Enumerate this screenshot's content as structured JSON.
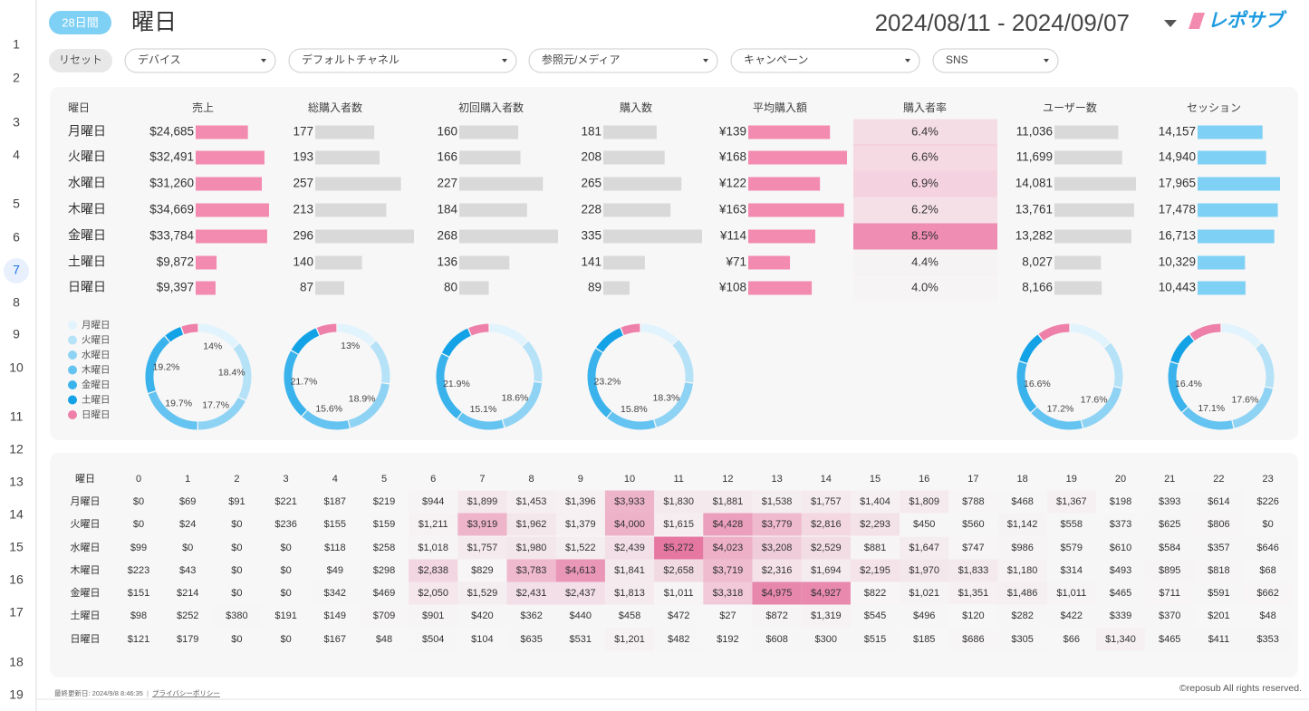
{
  "row_numbers": [
    1,
    2,
    3,
    4,
    5,
    6,
    7,
    8,
    9,
    10,
    11,
    12,
    13,
    14,
    15,
    16,
    17,
    18,
    19
  ],
  "header": {
    "period": "28日間",
    "title": "曜日",
    "date_range": "2024/08/11 - 2024/09/07",
    "logo": "レポサブ"
  },
  "filters": {
    "reset": "リセット",
    "dropdowns": [
      "デバイス",
      "デフォルトチャネル",
      "参照元/メディア",
      "キャンペーン",
      "SNS"
    ]
  },
  "days": [
    "月曜日",
    "火曜日",
    "水曜日",
    "木曜日",
    "金曜日",
    "土曜日",
    "日曜日"
  ],
  "day_colors": [
    "#e1f3fd",
    "#b6e2f8",
    "#8fd3f4",
    "#64c3f0",
    "#3ab3ec",
    "#13a2e6",
    "#ee7fa8"
  ],
  "table": {
    "header": "曜日",
    "columns": [
      {
        "name": "売上",
        "style": "bar",
        "color": "#f38bb0",
        "values": [
          24685,
          32491,
          31260,
          34669,
          33784,
          9872,
          9397
        ],
        "value_labels": [
          "$24,685",
          "$32,491",
          "$31,260",
          "$34,669",
          "$33,784",
          "$9,872",
          "$9,397"
        ],
        "donut_labels": [
          "14%",
          "18.4%",
          "17.7%",
          "19.7%",
          "19.2%",
          null,
          null
        ]
      },
      {
        "name": "総購入者数",
        "style": "bar",
        "color": "#d9d9d9",
        "values": [
          177,
          193,
          257,
          213,
          296,
          140,
          87
        ],
        "donut_labels": [
          "13%",
          null,
          "18.9%",
          "15.6%",
          "21.7%",
          null,
          null
        ]
      },
      {
        "name": "初回購入者数",
        "style": "bar",
        "color": "#d9d9d9",
        "values": [
          160,
          166,
          227,
          184,
          268,
          136,
          80
        ],
        "donut_labels": [
          null,
          null,
          "18.6%",
          "15.1%",
          "21.9%",
          null,
          null
        ]
      },
      {
        "name": "購入数",
        "style": "bar",
        "color": "#d9d9d9",
        "values": [
          181,
          208,
          265,
          228,
          335,
          141,
          89
        ],
        "donut_labels": [
          null,
          null,
          "18.3%",
          "15.8%",
          "23.2%",
          null,
          null
        ]
      },
      {
        "name": "平均購入額",
        "style": "bar",
        "color": "#f38bb0",
        "values": [
          139,
          168,
          122,
          163,
          114,
          71,
          108
        ],
        "value_labels": [
          "¥139",
          "¥168",
          "¥122",
          "¥163",
          "¥114",
          "¥71",
          "¥108"
        ]
      },
      {
        "name": "購入者率",
        "style": "heat",
        "color": "#f08db2",
        "values": [
          6.4,
          6.6,
          6.9,
          6.2,
          8.5,
          4.4,
          4.0
        ],
        "value_labels": [
          "6.4%",
          "6.6%",
          "6.9%",
          "6.2%",
          "8.5%",
          "4.4%",
          "4.0%"
        ]
      },
      {
        "name": "ユーザー数",
        "style": "bar",
        "color": "#d9d9d9",
        "values": [
          11036,
          11699,
          14081,
          13761,
          13282,
          8027,
          8166
        ],
        "value_labels": [
          "11,036",
          "11,699",
          "14,081",
          "13,761",
          "13,282",
          "8,027",
          "8,166"
        ],
        "donut_labels": [
          null,
          null,
          "17.6%",
          "17.2%",
          "16.6%",
          null,
          null
        ]
      },
      {
        "name": "セッション",
        "style": "bar",
        "color": "#7fd0f5",
        "values": [
          14157,
          14940,
          17965,
          17478,
          16713,
          10329,
          10443
        ],
        "value_labels": [
          "14,157",
          "14,940",
          "17,965",
          "17,478",
          "16,713",
          "10,329",
          "10,443"
        ],
        "donut_labels": [
          null,
          null,
          "17.6%",
          "17.1%",
          "16.4%",
          null,
          null
        ]
      }
    ]
  },
  "heatmap": {
    "header": "曜日",
    "color": "#e4709c",
    "hours": [
      0,
      1,
      2,
      3,
      4,
      5,
      6,
      7,
      8,
      9,
      10,
      11,
      12,
      13,
      14,
      15,
      16,
      17,
      18,
      19,
      20,
      21,
      22,
      23
    ],
    "rows": [
      {
        "values": [
          0,
          69,
          91,
          221,
          187,
          219,
          944,
          1899,
          1453,
          1396,
          3933,
          1830,
          1881,
          1538,
          1757,
          1404,
          1809,
          788,
          468,
          1367,
          198,
          393,
          614,
          226
        ],
        "value_labels": [
          "$0",
          "$69",
          "$91",
          "$221",
          "$187",
          "$219",
          "$944",
          "$1,899",
          "$1,453",
          "$1,396",
          "$3,933",
          "$1,830",
          "$1,881",
          "$1,538",
          "$1,757",
          "$1,404",
          "$1,809",
          "$788",
          "$468",
          "$1,367",
          "$198",
          "$393",
          "$614",
          "$226"
        ]
      },
      {
        "values": [
          0,
          24,
          0,
          236,
          155,
          159,
          1211,
          3919,
          1962,
          1379,
          4000,
          1615,
          4428,
          3779,
          2816,
          2293,
          450,
          560,
          1142,
          558,
          373,
          625,
          806,
          0
        ],
        "value_labels": [
          "$0",
          "$24",
          "$0",
          "$236",
          "$155",
          "$159",
          "$1,211",
          "$3,919",
          "$1,962",
          "$1,379",
          "$4,000",
          "$1,615",
          "$4,428",
          "$3,779",
          "$2,816",
          "$2,293",
          "$450",
          "$560",
          "$1,142",
          "$558",
          "$373",
          "$625",
          "$806",
          "$0"
        ]
      },
      {
        "values": [
          99,
          0,
          0,
          0,
          118,
          258,
          1018,
          1757,
          1980,
          1522,
          2439,
          5272,
          4023,
          3208,
          2529,
          881,
          1647,
          747,
          986,
          579,
          610,
          584,
          357,
          646
        ],
        "value_labels": [
          "$99",
          "$0",
          "$0",
          "$0",
          "$118",
          "$258",
          "$1,018",
          "$1,757",
          "$1,980",
          "$1,522",
          "$2,439",
          "$5,272",
          "$4,023",
          "$3,208",
          "$2,529",
          "$881",
          "$1,647",
          "$747",
          "$986",
          "$579",
          "$610",
          "$584",
          "$357",
          "$646"
        ]
      },
      {
        "values": [
          223,
          43,
          0,
          0,
          49,
          298,
          2838,
          829,
          3783,
          4613,
          1841,
          2658,
          3719,
          2316,
          1694,
          2195,
          1970,
          1833,
          1180,
          314,
          493,
          895,
          818,
          68
        ],
        "value_labels": [
          "$223",
          "$43",
          "$0",
          "$0",
          "$49",
          "$298",
          "$2,838",
          "$829",
          "$3,783",
          "$4,613",
          "$1,841",
          "$2,658",
          "$3,719",
          "$2,316",
          "$1,694",
          "$2,195",
          "$1,970",
          "$1,833",
          "$1,180",
          "$314",
          "$493",
          "$895",
          "$818",
          "$68"
        ]
      },
      {
        "values": [
          151,
          214,
          0,
          0,
          342,
          469,
          2050,
          1529,
          2431,
          2437,
          1813,
          1011,
          3318,
          4975,
          4927,
          822,
          1021,
          1351,
          1486,
          1011,
          465,
          711,
          591,
          662
        ],
        "value_labels": [
          "$151",
          "$214",
          "$0",
          "$0",
          "$342",
          "$469",
          "$2,050",
          "$1,529",
          "$2,431",
          "$2,437",
          "$1,813",
          "$1,011",
          "$3,318",
          "$4,975",
          "$4,927",
          "$822",
          "$1,021",
          "$1,351",
          "$1,486",
          "$1,011",
          "$465",
          "$711",
          "$591",
          "$662"
        ]
      },
      {
        "values": [
          98,
          252,
          380,
          191,
          149,
          709,
          901,
          420,
          362,
          440,
          458,
          472,
          27,
          872,
          1319,
          545,
          496,
          120,
          282,
          422,
          339,
          370,
          201,
          48
        ],
        "value_labels": [
          "$98",
          "$252",
          "$380",
          "$191",
          "$149",
          "$709",
          "$901",
          "$420",
          "$362",
          "$440",
          "$458",
          "$472",
          "$27",
          "$872",
          "$1,319",
          "$545",
          "$496",
          "$120",
          "$282",
          "$422",
          "$339",
          "$370",
          "$201",
          "$48"
        ]
      },
      {
        "values": [
          121,
          179,
          0,
          0,
          167,
          48,
          504,
          104,
          635,
          531,
          1201,
          482,
          192,
          608,
          300,
          515,
          185,
          686,
          305,
          66,
          1340,
          465,
          411,
          353
        ],
        "value_labels": [
          "$121",
          "$179",
          "$0",
          "$0",
          "$167",
          "$48",
          "$504",
          "$104",
          "$635",
          "$531",
          "$1,201",
          "$482",
          "$192",
          "$608",
          "$300",
          "$515",
          "$185",
          "$686",
          "$305",
          "$66",
          "$1,340",
          "$465",
          "$411",
          "$353"
        ]
      }
    ]
  },
  "footer": {
    "updated": "最終更新日: 2024/9/8 8:46:35",
    "separator": "|",
    "privacy": "プライバシーポリシー",
    "copyright": "©reposub All rights reserved."
  }
}
